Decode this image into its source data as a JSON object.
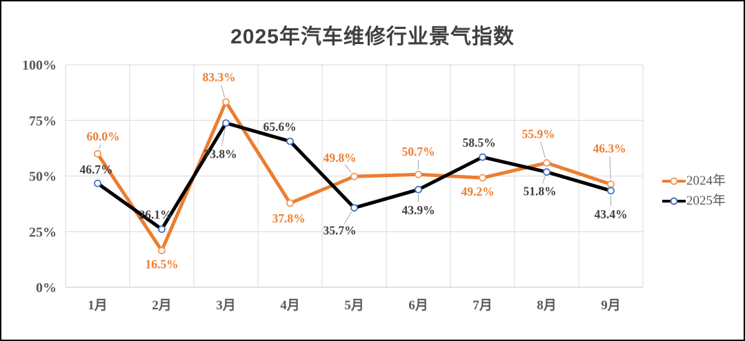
{
  "title": "2025年汽车维修行业景气指数",
  "chart_data": {
    "type": "line",
    "categories": [
      "1月",
      "2月",
      "3月",
      "4月",
      "5月",
      "6月",
      "7月",
      "8月",
      "9月"
    ],
    "series": [
      {
        "name": "2024年",
        "color": "#ED7D31",
        "marker_ring": "#F09A62",
        "values": [
          60.0,
          16.5,
          83.3,
          37.8,
          49.8,
          50.7,
          49.2,
          55.9,
          46.3
        ],
        "labels": [
          "60.0%",
          "16.5%",
          "83.3%",
          "37.8%",
          "49.8%",
          "50.7%",
          "49.2%",
          "55.9%",
          "46.3%"
        ]
      },
      {
        "name": "2025年",
        "color": "#000000",
        "marker_ring": "#4472C4",
        "values": [
          46.7,
          26.1,
          73.8,
          65.6,
          35.7,
          43.9,
          58.5,
          51.8,
          43.4
        ],
        "labels": [
          "46.7%",
          "26.1%",
          "73.8%",
          "65.6%",
          "35.7%",
          "43.9%",
          "58.5%",
          "51.8%",
          "43.4%"
        ]
      }
    ],
    "xlabel": "",
    "ylabel": "",
    "ylim": [
      0,
      100
    ],
    "y_ticks": {
      "values": [
        0,
        25,
        50,
        75,
        100
      ],
      "labels": [
        "0%",
        "25%",
        "50%",
        "75%",
        "100%"
      ]
    },
    "grid": true,
    "legend_position": "right"
  },
  "colors": {
    "grid": "#D9D9D9",
    "axis_line": "#C6C6C6",
    "axis_text": "#595959",
    "label_2025_text": "#404040",
    "leader_line": "#A6A6A6",
    "title_text": "#404040",
    "background": "#FFFFFF",
    "border": "#000000"
  }
}
